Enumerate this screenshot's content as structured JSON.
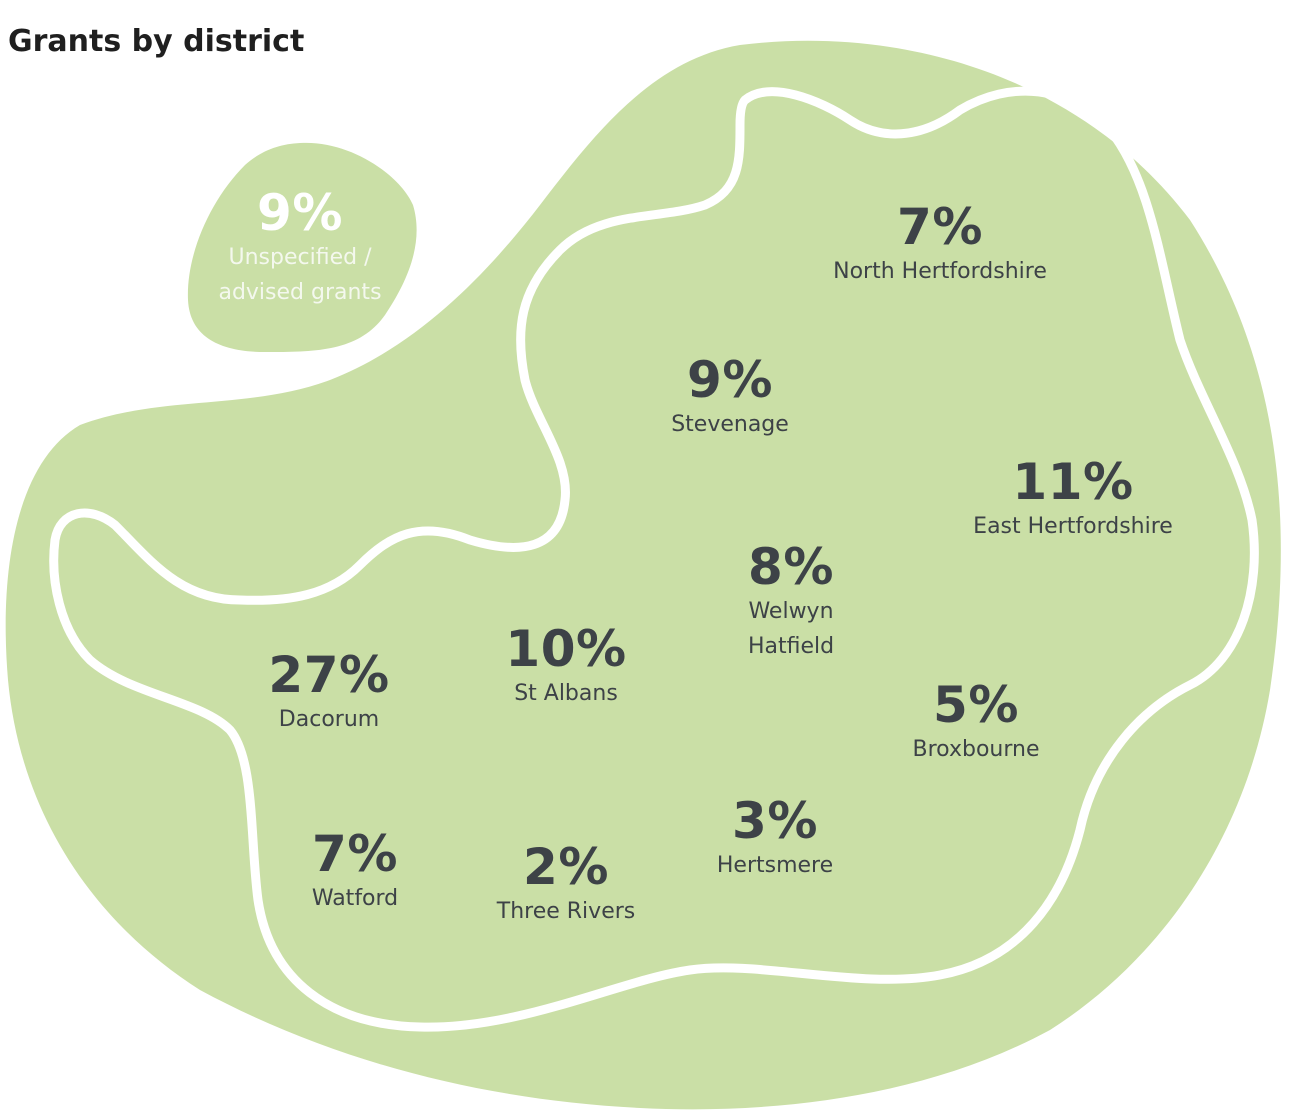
{
  "title": "Grants by district",
  "colors": {
    "blob": "#cadfa6",
    "outline": "#ffffff",
    "text": "#3d4247",
    "title": "#1f1f1f"
  },
  "districts": [
    {
      "pct": "9%",
      "name": "Unspecified /",
      "name2": "advised grants"
    },
    {
      "pct": "7%",
      "name": "North Hertfordshire"
    },
    {
      "pct": "9%",
      "name": "Stevenage"
    },
    {
      "pct": "11%",
      "name": "East Hertfordshire"
    },
    {
      "pct": "8%",
      "name": "Welwyn",
      "name2": "Hatfield"
    },
    {
      "pct": "10%",
      "name": "St Albans"
    },
    {
      "pct": "27%",
      "name": "Dacorum"
    },
    {
      "pct": "5%",
      "name": "Broxbourne"
    },
    {
      "pct": "3%",
      "name": "Hertsmere"
    },
    {
      "pct": "7%",
      "name": "Watford"
    },
    {
      "pct": "2%",
      "name": "Three Rivers"
    }
  ]
}
